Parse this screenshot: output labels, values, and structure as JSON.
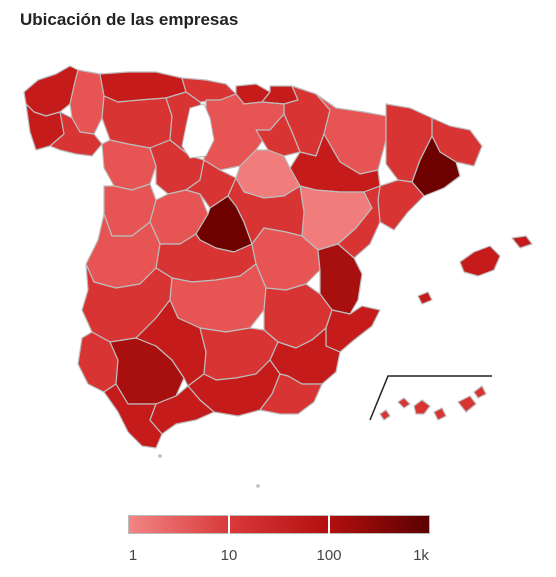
{
  "title": "Ubicación de las empresas",
  "colors": {
    "c1": "#f07c7c",
    "c2": "#e65454",
    "c3": "#d83434",
    "c4": "#c61b1b",
    "c5": "#a80f0f",
    "c6": "#6e0000",
    "border": "#bdbdbd"
  },
  "legend": {
    "scale": "log",
    "ticks": [
      "1",
      "10",
      "100",
      "1k"
    ],
    "gradient": [
      "#f28585",
      "#d93a3a",
      "#b40f0f",
      "#5a0000"
    ]
  },
  "regions": [
    {
      "name": "A Coruña",
      "shade": "c4"
    },
    {
      "name": "Lugo",
      "shade": "c2"
    },
    {
      "name": "Asturias",
      "shade": "c4"
    },
    {
      "name": "Cantabria",
      "shade": "c3"
    },
    {
      "name": "Bizkaia",
      "shade": "c4"
    },
    {
      "name": "Gipuzkoa",
      "shade": "c4"
    },
    {
      "name": "Navarra",
      "shade": "c3"
    },
    {
      "name": "Huesca",
      "shade": "c2"
    },
    {
      "name": "Girona",
      "shade": "c3"
    },
    {
      "name": "Barcelona",
      "shade": "c6"
    },
    {
      "name": "Lleida",
      "shade": "c3"
    },
    {
      "name": "Pontevedra",
      "shade": "c4"
    },
    {
      "name": "Ourense",
      "shade": "c3"
    },
    {
      "name": "León",
      "shade": "c3"
    },
    {
      "name": "Palencia",
      "shade": "c3"
    },
    {
      "name": "Burgos",
      "shade": "c2"
    },
    {
      "name": "La Rioja",
      "shade": "c3"
    },
    {
      "name": "Zaragoza",
      "shade": "c4"
    },
    {
      "name": "Tarragona",
      "shade": "c3"
    },
    {
      "name": "Zamora",
      "shade": "c2"
    },
    {
      "name": "Valladolid",
      "shade": "c3"
    },
    {
      "name": "Soria",
      "shade": "c1"
    },
    {
      "name": "Teruel",
      "shade": "c1"
    },
    {
      "name": "Castellón",
      "shade": "c3"
    },
    {
      "name": "Salamanca",
      "shade": "c2"
    },
    {
      "name": "Ávila",
      "shade": "c2"
    },
    {
      "name": "Segovia",
      "shade": "c3"
    },
    {
      "name": "Madrid",
      "shade": "c6"
    },
    {
      "name": "Guadalajara",
      "shade": "c3"
    },
    {
      "name": "Cáceres",
      "shade": "c2"
    },
    {
      "name": "Toledo",
      "shade": "c3"
    },
    {
      "name": "Cuenca",
      "shade": "c2"
    },
    {
      "name": "Valencia",
      "shade": "c5"
    },
    {
      "name": "Badajoz",
      "shade": "c3"
    },
    {
      "name": "Ciudad Real",
      "shade": "c2"
    },
    {
      "name": "Albacete",
      "shade": "c3"
    },
    {
      "name": "Alicante",
      "shade": "c4"
    },
    {
      "name": "Huelva",
      "shade": "c3"
    },
    {
      "name": "Sevilla",
      "shade": "c5"
    },
    {
      "name": "Córdoba",
      "shade": "c4"
    },
    {
      "name": "Jaén",
      "shade": "c3"
    },
    {
      "name": "Granada",
      "shade": "c4"
    },
    {
      "name": "Murcia",
      "shade": "c4"
    },
    {
      "name": "Almería",
      "shade": "c3"
    },
    {
      "name": "Cádiz",
      "shade": "c4"
    },
    {
      "name": "Málaga",
      "shade": "c4"
    },
    {
      "name": "Illes Balears",
      "shade": "c4"
    },
    {
      "name": "Santa Cruz de Tenerife",
      "shade": "c3"
    },
    {
      "name": "Las Palmas",
      "shade": "c3"
    }
  ]
}
